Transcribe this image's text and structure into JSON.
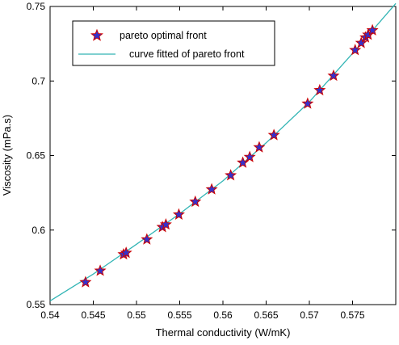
{
  "chart_data": {
    "type": "scatter",
    "title": "",
    "xlabel": "Thermal conductivity (W/mK)",
    "ylabel": "Viscosity (mPa.s)",
    "xlim": [
      0.54,
      0.58
    ],
    "ylim": [
      0.55,
      0.75
    ],
    "xticks": [
      0.54,
      0.545,
      0.55,
      0.555,
      0.56,
      0.565,
      0.57,
      0.575
    ],
    "xtick_labels": [
      "0.54",
      "0.545",
      "0.55",
      "0.555",
      "0.56",
      "0.565",
      "0.57",
      "0.575"
    ],
    "yticks": [
      0.55,
      0.6,
      0.65,
      0.7,
      0.75
    ],
    "ytick_labels": [
      "0.55",
      "0.6",
      "0.65",
      "0.7",
      "0.75"
    ],
    "grid": false,
    "legend_position": "top-left",
    "series": [
      {
        "name": "pareto optimal front",
        "kind": "scatter",
        "marker": "star",
        "marker_fill": "#3333cc",
        "marker_edge": "#cc0000",
        "points": [
          [
            0.5441,
            0.565
          ],
          [
            0.5458,
            0.5727
          ],
          [
            0.5485,
            0.5837
          ],
          [
            0.5488,
            0.5847
          ],
          [
            0.5512,
            0.5937
          ],
          [
            0.553,
            0.602
          ],
          [
            0.5534,
            0.6037
          ],
          [
            0.5549,
            0.6104
          ],
          [
            0.5568,
            0.619
          ],
          [
            0.5587,
            0.6273
          ],
          [
            0.5609,
            0.6367
          ],
          [
            0.5623,
            0.6452
          ],
          [
            0.5631,
            0.649
          ],
          [
            0.5642,
            0.6555
          ],
          [
            0.5659,
            0.6637
          ],
          [
            0.5698,
            0.6848
          ],
          [
            0.5712,
            0.6938
          ],
          [
            0.5728,
            0.7035
          ],
          [
            0.5753,
            0.7207
          ],
          [
            0.576,
            0.7255
          ],
          [
            0.5765,
            0.7292
          ],
          [
            0.5768,
            0.731
          ],
          [
            0.5773,
            0.734
          ]
        ]
      },
      {
        "name": "curve fitted of pareto front",
        "kind": "line",
        "color": "#33b5b5",
        "points": [
          [
            0.54,
            0.5525
          ],
          [
            0.545,
            0.5705
          ],
          [
            0.55,
            0.5905
          ],
          [
            0.555,
            0.611
          ],
          [
            0.56,
            0.633
          ],
          [
            0.565,
            0.6585
          ],
          [
            0.57,
            0.686
          ],
          [
            0.575,
            0.7185
          ],
          [
            0.58,
            0.752
          ]
        ]
      }
    ]
  }
}
